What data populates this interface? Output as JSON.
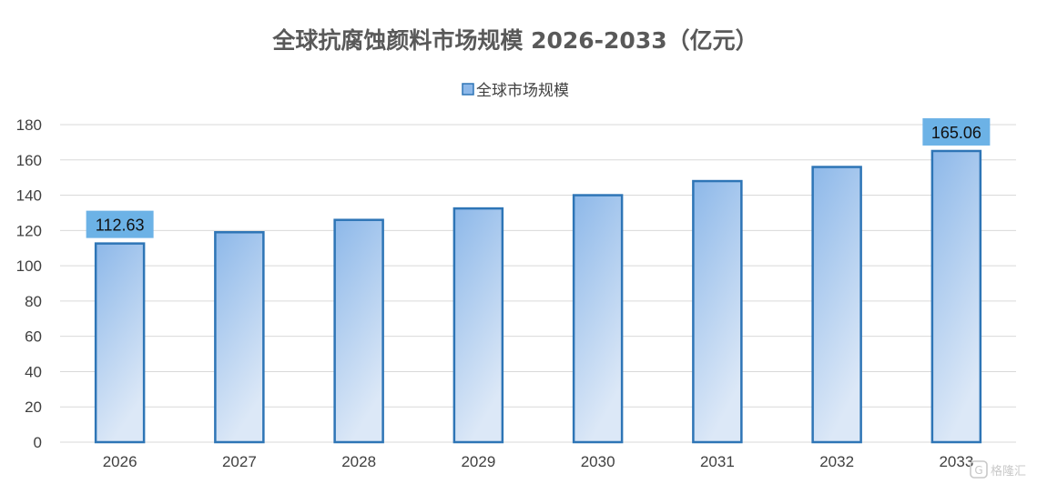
{
  "chart_data": {
    "type": "bar",
    "title": "全球抗腐蚀颜料市场规模 2026-2033（亿元）",
    "categories": [
      "2026",
      "2027",
      "2028",
      "2029",
      "2030",
      "2031",
      "2032",
      "2033"
    ],
    "series": [
      {
        "name": "全球市场规模",
        "values": [
          112.63,
          119,
          126,
          132.5,
          140,
          148,
          156,
          165.06
        ],
        "color": "#5b9bd5"
      }
    ],
    "data_labels": [
      {
        "index": 0,
        "text": "112.63"
      },
      {
        "index": 7,
        "text": "165.06"
      }
    ],
    "ylim": [
      0,
      180
    ],
    "yticks": [
      0,
      20,
      40,
      60,
      80,
      100,
      120,
      140,
      160,
      180
    ],
    "grid": true,
    "legend_position": "top",
    "xlabel": "",
    "ylabel": ""
  },
  "colors": {
    "bar_stroke": "#2e75b6",
    "bar_top": "#8db8e9",
    "bar_bottom": "#dce8f7",
    "label_bg": "#6cb2e6",
    "grid": "#d9d9d9"
  },
  "watermark": {
    "text": "格隆汇",
    "icon": "gelonghui-logo-icon"
  }
}
